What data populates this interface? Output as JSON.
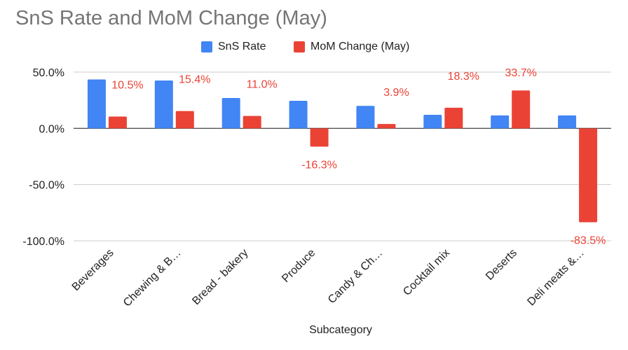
{
  "chart_data": {
    "type": "bar",
    "title": "SnS Rate and MoM Change (May)",
    "xlabel": "Subcategory",
    "ylabel": "",
    "ylim": [
      -100,
      50
    ],
    "yticks": [
      "50.0%",
      "0.0%",
      "-50.0%",
      "-100.0%"
    ],
    "ytick_values": [
      50,
      0,
      -50,
      -100
    ],
    "categories": [
      "Beverages",
      "Chewing & B…",
      "Bread - bakery",
      "Produce",
      "Candy & Ch…",
      "Cocktail mix",
      "Deserts",
      "Deli meats &…"
    ],
    "series": [
      {
        "name": "SnS Rate",
        "color": "#4285f4",
        "values": [
          43.5,
          42.5,
          27.0,
          24.5,
          20.0,
          12.0,
          11.5,
          11.5
        ],
        "labels": null
      },
      {
        "name": "MoM Change (May)",
        "color": "#ea4335",
        "values": [
          10.5,
          15.4,
          11.0,
          -16.3,
          3.9,
          18.3,
          33.7,
          -83.5
        ],
        "labels": [
          "10.5%",
          "15.4%",
          "11.0%",
          "-16.3%",
          "3.9%",
          "18.3%",
          "33.7%",
          "-83.5%"
        ]
      }
    ],
    "legend_position": "top-center",
    "grid": true
  }
}
